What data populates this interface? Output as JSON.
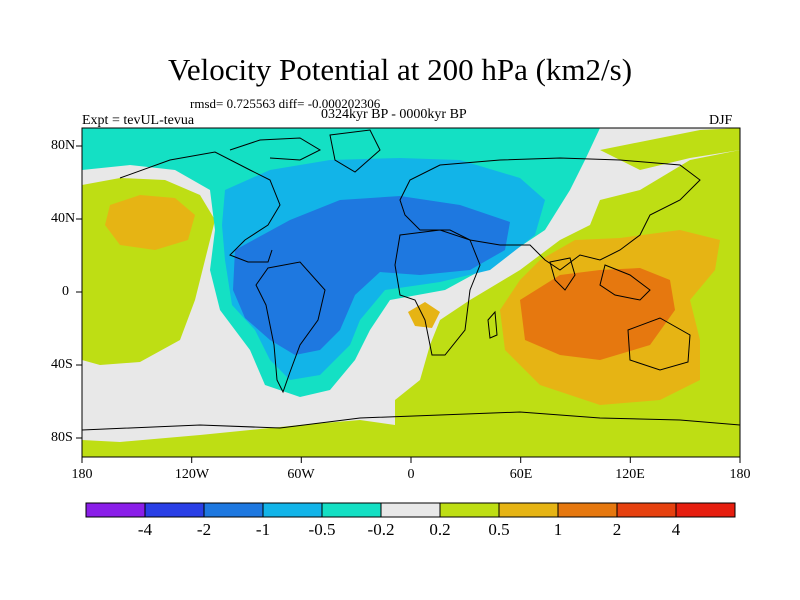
{
  "title": "Velocity Potential at 200 hPa (km2/s)",
  "stats": "rmsd= 0.725563 diff= -0.000202306",
  "period": "0324kyr BP - 0000kyr BP",
  "experiment": "Expt = tevUL-tevua",
  "season": "DJF",
  "lat_labels": [
    "80N",
    "40N",
    "0",
    "40S",
    "80S"
  ],
  "lon_labels": [
    "180",
    "120W",
    "60W",
    "0",
    "60E",
    "120E",
    "180"
  ],
  "colorbar": {
    "labels": [
      "-4",
      "-2",
      "-1",
      "-0.5",
      "-0.2",
      "0.2",
      "0.5",
      "1",
      "2",
      "4"
    ],
    "colors": [
      "#8a1ee8",
      "#2a3fe6",
      "#1e78e0",
      "#12b4e8",
      "#14e0c4",
      "#e8e8e8",
      "#bede14",
      "#e6b414",
      "#e6780f",
      "#e6410f",
      "#e61e0f"
    ]
  },
  "colors": {
    "neutral": "#e8e8e8",
    "weak_pos": "#bede14",
    "mid_pos": "#e6b414",
    "strong_pos": "#e6780f",
    "weak_neg": "#14e0c4",
    "mid_neg": "#12b4e8",
    "strong_neg": "#1e78e0"
  }
}
